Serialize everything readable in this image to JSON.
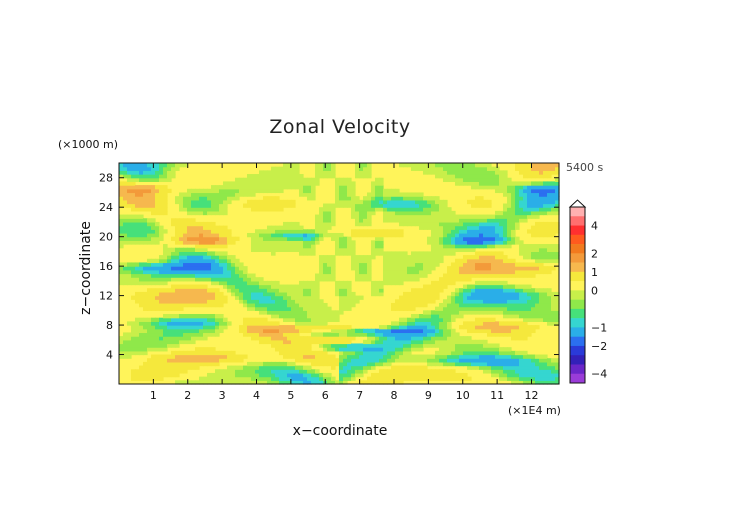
{
  "chart_data": {
    "type": "heatmap",
    "title": "Zonal Velocity",
    "time_label": "5400 s",
    "xlabel": "x−coordinate",
    "ylabel": "z−coordinate",
    "x_unit": "(×1E4 m)",
    "y_unit": "(×1000 m)",
    "x_ticks": [
      "1",
      "2",
      "3",
      "4",
      "5",
      "6",
      "7",
      "8",
      "9",
      "10",
      "11",
      "12"
    ],
    "y_ticks": [
      "4",
      "8",
      "12",
      "16",
      "20",
      "24",
      "28"
    ],
    "xlim": [
      0,
      12.8
    ],
    "ylim": [
      0,
      30
    ],
    "colorbar": {
      "ticks": [
        "4",
        "2",
        "1",
        "0",
        "−1",
        "−2",
        "−4"
      ],
      "levels": [
        {
          "value": 5,
          "color": "#ffb0b0"
        },
        {
          "value": 4,
          "color": "#ff6f6f"
        },
        {
          "value": 3,
          "color": "#ff2f2f"
        },
        {
          "value": 2.5,
          "color": "#ff5a1e"
        },
        {
          "value": 2,
          "color": "#f27a1e"
        },
        {
          "value": 1.5,
          "color": "#f39a3a"
        },
        {
          "value": 1,
          "color": "#f6b84e"
        },
        {
          "value": 0.5,
          "color": "#f5e83c"
        },
        {
          "value": 0,
          "color": "#fff45a"
        },
        {
          "value": -0.25,
          "color": "#c8ef4a"
        },
        {
          "value": -0.5,
          "color": "#8fe84a"
        },
        {
          "value": -0.75,
          "color": "#46e07a"
        },
        {
          "value": -1,
          "color": "#35d6d0"
        },
        {
          "value": -1.5,
          "color": "#2aaee8"
        },
        {
          "value": -2,
          "color": "#2b6ff0"
        },
        {
          "value": -2.5,
          "color": "#2a3ad8"
        },
        {
          "value": -3,
          "color": "#3320b8"
        },
        {
          "value": -4,
          "color": "#6a26c8"
        },
        {
          "value": -5,
          "color": "#9a3cd8"
        }
      ]
    },
    "features": [
      {
        "x": 5.7,
        "z": 7.5,
        "value": 1.5,
        "rx": 1.6,
        "rz": 0.5
      },
      {
        "x": 7.3,
        "z": 7.2,
        "value": -1.5,
        "rx": 1.6,
        "rz": 0.5
      },
      {
        "x": 1.0,
        "z": 15.8,
        "value": -1.2,
        "rx": 1.3,
        "rz": 0.8
      },
      {
        "x": 12.0,
        "z": 15.8,
        "value": 1.2,
        "rx": 1.1,
        "rz": 0.8
      },
      {
        "x": 1.2,
        "z": 12.2,
        "value": 1.0,
        "rx": 1.6,
        "rz": 1.4
      },
      {
        "x": 11.5,
        "z": 12.2,
        "value": -0.9,
        "rx": 1.4,
        "rz": 1.2
      },
      {
        "x": 4.3,
        "z": 24.5,
        "value": 1.0,
        "rx": 1.0,
        "rz": 1.0
      },
      {
        "x": 8.2,
        "z": 24.5,
        "value": -0.9,
        "rx": 1.2,
        "rz": 1.0
      },
      {
        "x": 3.0,
        "z": 3.5,
        "value": 1.0,
        "rx": 2.2,
        "rz": 0.9
      },
      {
        "x": 10.0,
        "z": 3.2,
        "value": -1.0,
        "rx": 2.2,
        "rz": 0.8
      },
      {
        "x": 1.6,
        "z": 8.4,
        "value": -0.9,
        "rx": 1.4,
        "rz": 0.8
      },
      {
        "x": 11.2,
        "z": 7.8,
        "value": 0.9,
        "rx": 1.4,
        "rz": 0.8
      },
      {
        "x": 2.4,
        "z": 19.5,
        "value": 1.0,
        "rx": 1.0,
        "rz": 0.7
      },
      {
        "x": 10.5,
        "z": 19.5,
        "value": -1.0,
        "rx": 1.0,
        "rz": 0.7
      },
      {
        "x": 7.4,
        "z": 20.5,
        "value": 1.0,
        "rx": 1.1,
        "rz": 0.6
      },
      {
        "x": 5.3,
        "z": 20.2,
        "value": -0.9,
        "rx": 1.0,
        "rz": 0.6
      },
      {
        "x": 0.8,
        "z": 26.5,
        "value": 1.0,
        "rx": 0.7,
        "rz": 0.7
      },
      {
        "x": 12.2,
        "z": 26.5,
        "value": -1.0,
        "rx": 0.7,
        "rz": 0.7
      },
      {
        "x": 6.5,
        "z": 5.0,
        "value": -1.2,
        "rx": 0.8,
        "rz": 0.4
      },
      {
        "x": 6.3,
        "z": 6.0,
        "value": 1.2,
        "rx": 0.8,
        "rz": 0.4
      }
    ]
  }
}
